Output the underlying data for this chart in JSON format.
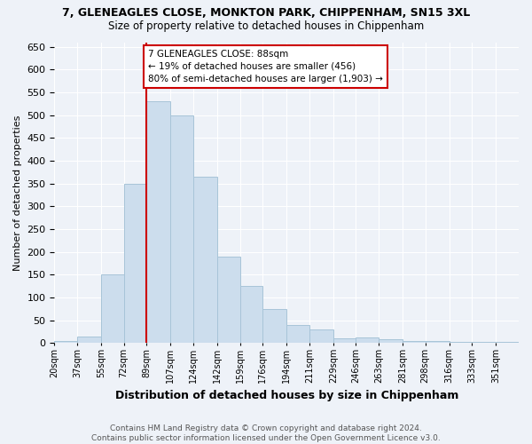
{
  "title": "7, GLENEAGLES CLOSE, MONKTON PARK, CHIPPENHAM, SN15 3XL",
  "subtitle": "Size of property relative to detached houses in Chippenham",
  "xlabel": "Distribution of detached houses by size in Chippenham",
  "ylabel": "Number of detached properties",
  "bar_color": "#ccdded",
  "bar_edge_color": "#a8c4d8",
  "annotation_box_color": "#cc0000",
  "vline_color": "#cc0000",
  "vline_x": 89,
  "annotation_text": "7 GLENEAGLES CLOSE: 88sqm\n← 19% of detached houses are smaller (456)\n80% of semi-detached houses are larger (1,903) →",
  "footer": "Contains HM Land Registry data © Crown copyright and database right 2024.\nContains public sector information licensed under the Open Government Licence v3.0.",
  "bins": [
    20,
    37,
    55,
    72,
    89,
    107,
    124,
    142,
    159,
    176,
    194,
    211,
    229,
    246,
    263,
    281,
    298,
    316,
    333,
    351,
    368
  ],
  "counts": [
    5,
    15,
    150,
    350,
    530,
    500,
    365,
    190,
    125,
    75,
    40,
    30,
    10,
    12,
    8,
    5,
    5,
    3,
    3,
    2
  ],
  "ylim": [
    0,
    660
  ],
  "background_color": "#eef2f8"
}
